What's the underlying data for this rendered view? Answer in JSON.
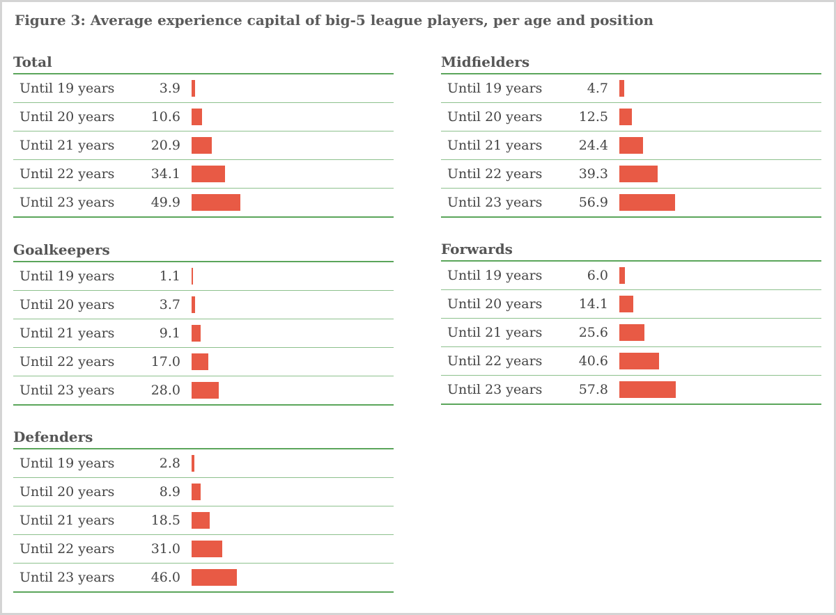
{
  "figure_title": "Figure 3: Average experience capital of big-5 league players, per age and position",
  "colors": {
    "bar": "#e85a45",
    "rule": "#5aa55a",
    "title": "#5b5b5b"
  },
  "chart_data": [
    {
      "type": "bar",
      "title": "Total",
      "categories": [
        "Until 19 years",
        "Until 20 years",
        "Until 21 years",
        "Until 22 years",
        "Until 23 years"
      ],
      "value_labels": [
        "3.9",
        "10.6",
        "20.9",
        "34.1",
        "49.9"
      ],
      "values": [
        3.9,
        10.6,
        20.9,
        34.1,
        49.9
      ]
    },
    {
      "type": "bar",
      "title": "Goalkeepers",
      "categories": [
        "Until 19 years",
        "Until 20 years",
        "Until 21 years",
        "Until 22 years",
        "Until 23 years"
      ],
      "value_labels": [
        "1.1",
        "3.7",
        "9.1",
        "17.0",
        "28.0"
      ],
      "values": [
        1.1,
        3.7,
        9.1,
        17.0,
        28.0
      ]
    },
    {
      "type": "bar",
      "title": "Defenders",
      "categories": [
        "Until 19 years",
        "Until 20 years",
        "Until 21 years",
        "Until 22 years",
        "Until 23 years"
      ],
      "value_labels": [
        "2.8",
        "8.9",
        "18.5",
        "31.0",
        "46.0"
      ],
      "values": [
        2.8,
        8.9,
        18.5,
        31.0,
        46.0
      ]
    },
    {
      "type": "bar",
      "title": "Midfielders",
      "categories": [
        "Until 19 years",
        "Until 20 years",
        "Until 21 years",
        "Until 22 years",
        "Until 23 years"
      ],
      "value_labels": [
        "4.7",
        "12.5",
        "24.4",
        "39.3",
        "56.9"
      ],
      "values": [
        4.7,
        12.5,
        24.4,
        39.3,
        56.9
      ]
    },
    {
      "type": "bar",
      "title": "Forwards",
      "categories": [
        "Until 19 years",
        "Until 20 years",
        "Until 21 years",
        "Until 22 years",
        "Until 23 years"
      ],
      "value_labels": [
        "6.0",
        "14.1",
        "25.6",
        "40.6",
        "57.8"
      ],
      "values": [
        6.0,
        14.1,
        25.6,
        40.6,
        57.8
      ]
    }
  ]
}
